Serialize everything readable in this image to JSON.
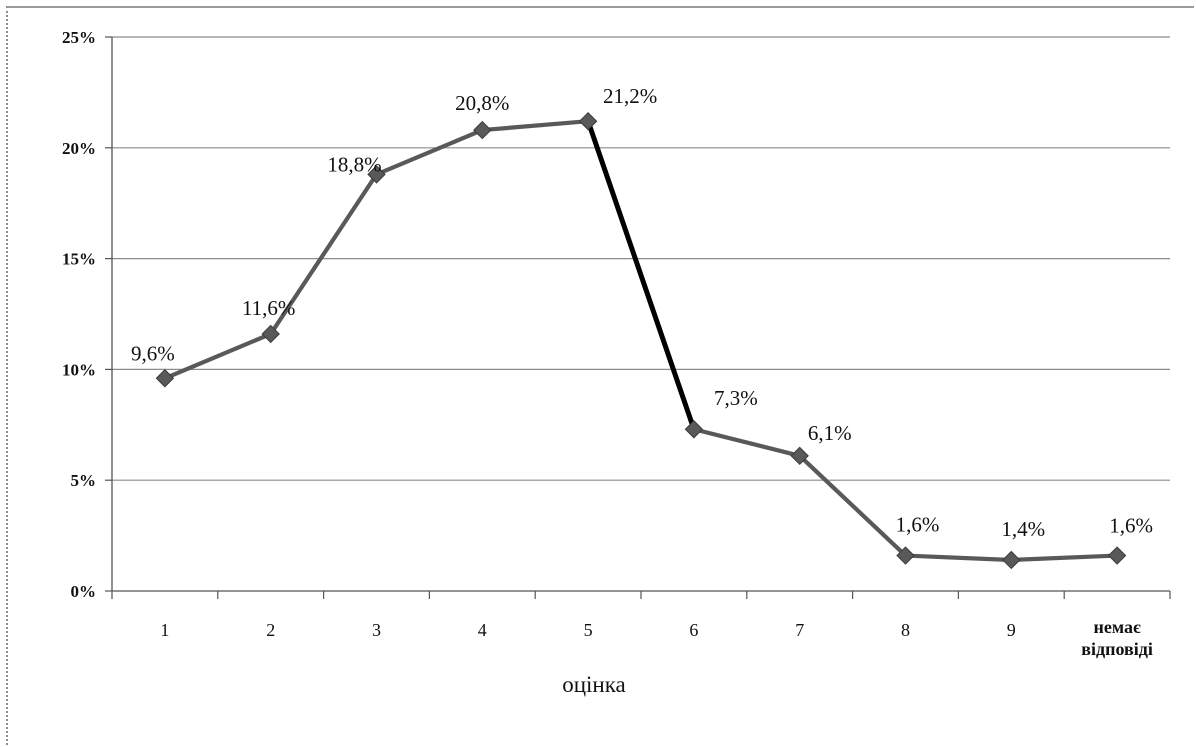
{
  "chart_data": {
    "type": "line",
    "title": "",
    "xlabel": "оцінка",
    "ylabel": "",
    "categories": [
      "1",
      "2",
      "3",
      "4",
      "5",
      "6",
      "7",
      "8",
      "9",
      "немає відповіді"
    ],
    "series": [
      {
        "values": [
          9.6,
          11.6,
          18.8,
          20.8,
          21.2,
          7.3,
          6.1,
          1.6,
          1.4,
          1.6
        ],
        "labels": [
          "9,6%",
          "11,6%",
          "18,8%",
          "20,8%",
          "21,2%",
          "7,3%",
          "6,1%",
          "1,6%",
          "1,4%",
          "1,6%"
        ],
        "color": "#595959",
        "emphasis_color": "#000000"
      }
    ],
    "y_tick_labels": [
      "0%",
      "5%",
      "10%",
      "15%",
      "20%",
      "25%"
    ],
    "ylim": [
      0,
      25
    ],
    "grid": true,
    "legend": "none"
  }
}
